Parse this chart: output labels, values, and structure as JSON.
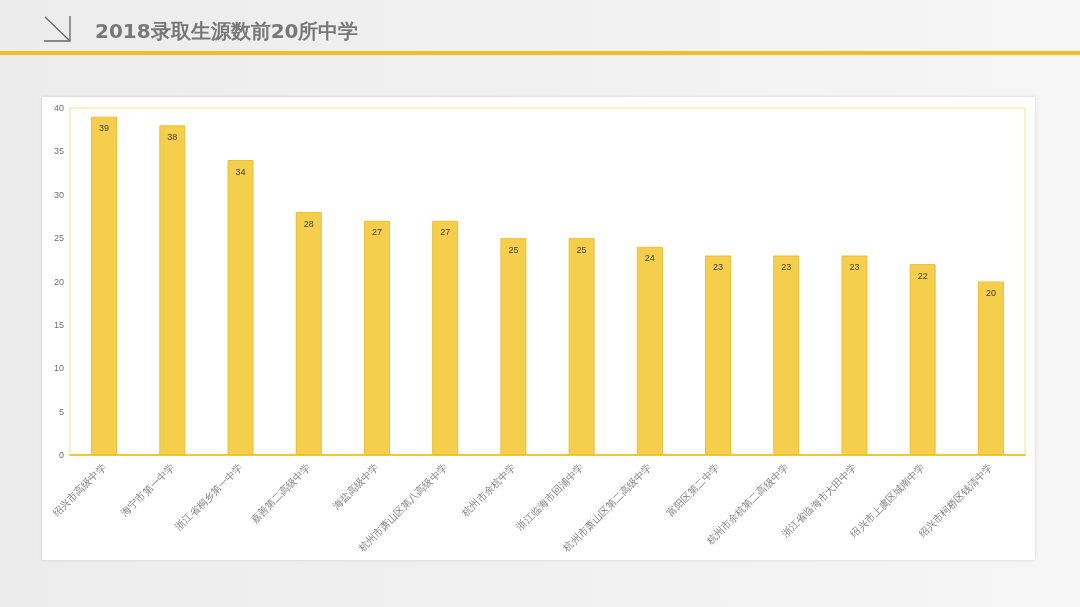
{
  "chart_data": {
    "type": "bar",
    "title": "2018录取生源数前20所中学",
    "categories": [
      "绍兴市高级中学",
      "海宁市第一中学",
      "浙江省桐乡第一中学",
      "嘉善第二高级中学",
      "海盐高级中学",
      "杭州市萧山区第八高级中学",
      "杭州市余杭中学",
      "浙江临海市回浦中学",
      "杭州市萧山区第二高级中学",
      "富阳区第二中学",
      "杭州市余杭第二高级中学",
      "浙江省临海市大田中学",
      "绍兴市上虞区城南中学",
      "绍兴市柯桥区钱清中学"
    ],
    "values": [
      39,
      38,
      34,
      28,
      27,
      27,
      25,
      25,
      24,
      23,
      23,
      23,
      22,
      20
    ],
    "color": "#f5cf4c",
    "ylim": [
      0,
      40
    ],
    "yticks": [
      0,
      5,
      10,
      15,
      20,
      25,
      30,
      35,
      40
    ],
    "data_labels": true,
    "grid": false
  }
}
